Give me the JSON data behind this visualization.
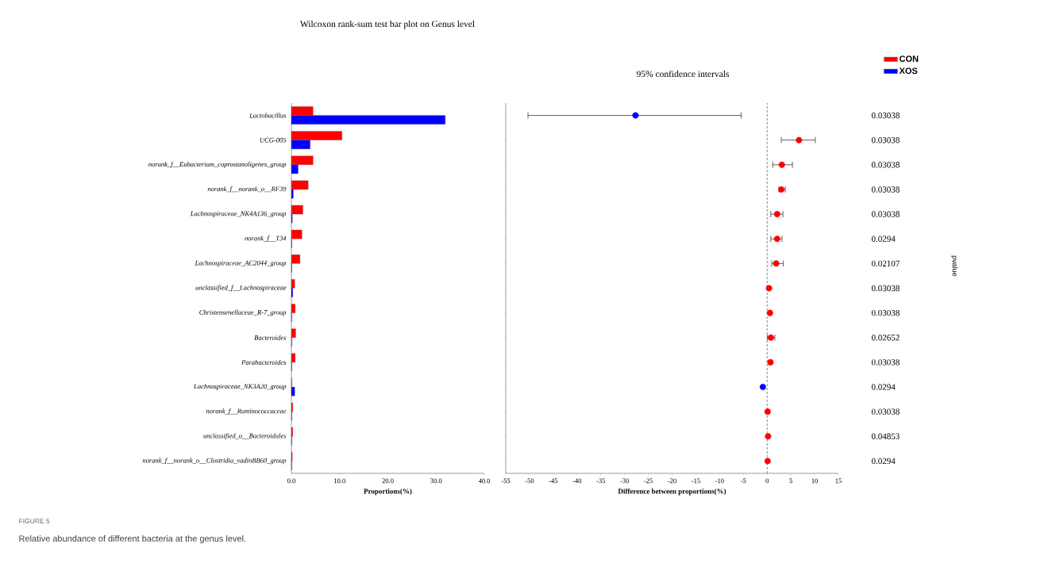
{
  "chart_data": [
    {
      "type": "bar",
      "orientation": "horizontal",
      "title": "Wilcoxon rank-sum test bar plot on Genus level",
      "xlabel": "Proportions(%)",
      "categories": [
        "Lactobacillus",
        "UCG-005",
        "norank_f__Eubacterium_coprostanoligenes_group",
        "norank_f__norank_o__RF39",
        "Lachnospiraceae_NK4A136_group",
        "norank_f__T34",
        "Lachnospiraceae_AC2044_group",
        "unclassified_f__Lachnospiraceae",
        "Christensenellaceae_R-7_group",
        "Bacteroides",
        "Parabacteroides",
        "Lachnospiraceae_NK3A20_group",
        "norank_f__Ruminococcaceae",
        "unclassified_o__Bacteroidales",
        "norank_f__norank_o__Clostridia_vadinBB60_group"
      ],
      "series": [
        {
          "name": "CON",
          "color": "#ff0000",
          "values": [
            4.5,
            10.5,
            4.5,
            3.5,
            2.4,
            2.2,
            1.8,
            0.7,
            0.8,
            0.9,
            0.8,
            0.1,
            0.3,
            0.3,
            0.2
          ]
        },
        {
          "name": "XOS",
          "color": "#0000ff",
          "values": [
            31.9,
            3.9,
            1.4,
            0.4,
            0.2,
            0.1,
            0.1,
            0.3,
            0.1,
            0.1,
            0.1,
            0.7,
            0.1,
            0.1,
            0.1
          ]
        }
      ],
      "xlim": [
        0,
        40
      ],
      "xticks": [
        {
          "value": 0,
          "label": "0.0"
        },
        {
          "value": 10,
          "label": "10.0"
        },
        {
          "value": 20,
          "label": "20.0"
        },
        {
          "value": 30,
          "label": "30.0"
        },
        {
          "value": 40,
          "label": "40.0"
        }
      ],
      "legend": "top right",
      "annotations": [
        "FIGURE 5",
        "Relative abundance of different bacteria at the genus level."
      ]
    },
    {
      "type": "scatter",
      "orientation": "horizontal",
      "title": "95% confidence intervals",
      "xlabel": "Difference between proportions(%)",
      "y2label": "pvalue",
      "categories": [
        null,
        null,
        null,
        null,
        null,
        null,
        null,
        null,
        null,
        null,
        null,
        null,
        null,
        null,
        null
      ],
      "values": [
        -27.7,
        6.7,
        3.1,
        3.0,
        2.1,
        2.1,
        1.9,
        0.4,
        0.6,
        0.8,
        0.7,
        -0.9,
        0.1,
        0.2,
        0.1
      ],
      "colors": [
        "#0000ff",
        "#ff0000",
        "#ff0000",
        "#ff0000",
        "#ff0000",
        "#ff0000",
        "#ff0000",
        "#ff0000",
        "#ff0000",
        "#ff0000",
        "#ff0000",
        "#0000ff",
        "#ff0000",
        "#ff0000",
        "#ff0000"
      ],
      "errors": [
        [
          -50.4,
          -5.4
        ],
        [
          2.9,
          10.2
        ],
        [
          1.1,
          5.4
        ],
        [
          2.4,
          3.9
        ],
        [
          0.7,
          3.4
        ],
        [
          0.7,
          3.2
        ],
        [
          0.9,
          3.5
        ],
        null,
        null,
        [
          0.0,
          1.7
        ],
        null,
        null,
        null,
        null,
        null
      ],
      "marker": "circle",
      "xlim": [
        -55,
        15
      ],
      "xticks": [
        -55,
        -50,
        -45,
        -40,
        -35,
        -30,
        -25,
        -20,
        -15,
        -10,
        -5,
        0,
        5,
        10,
        15
      ],
      "tick_labels": "x",
      "ref_lines": [
        {
          "axis": "x",
          "value": 0,
          "line_style": "dashed",
          "color": "#666666"
        }
      ],
      "annotations": [
        "0.03038",
        "0.03038",
        "0.03038",
        "0.03038",
        "0.03038",
        "0.0294",
        "0.02107",
        "0.03038",
        "0.03038",
        "0.02652",
        "0.03038",
        "0.0294",
        "0.03038",
        "0.04853",
        "0.0294"
      ]
    }
  ]
}
